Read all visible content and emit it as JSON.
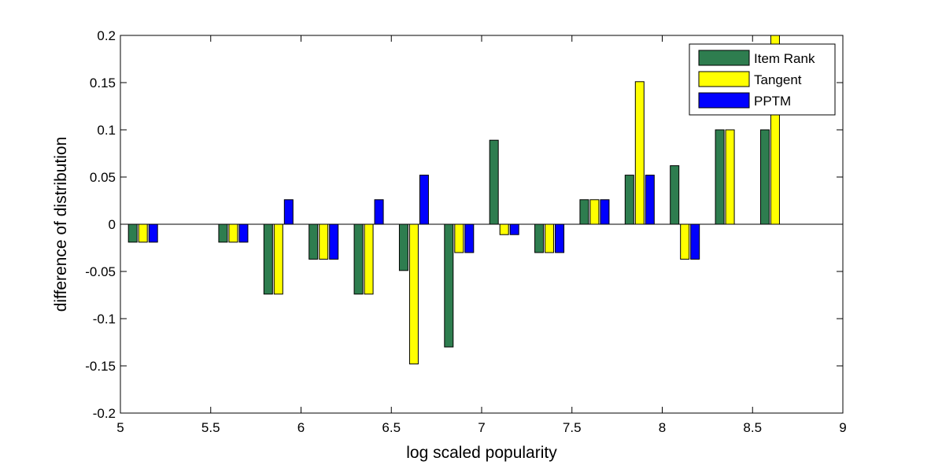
{
  "chart_data": {
    "type": "bar",
    "xlabel": "log scaled popularity",
    "ylabel": "difference of distribution",
    "xlim": [
      5,
      9
    ],
    "ylim": [
      -0.2,
      0.2
    ],
    "x_ticks": [
      "5",
      "5.5",
      "6",
      "6.5",
      "7",
      "7.5",
      "8",
      "8.5",
      "9"
    ],
    "y_ticks": [
      "-0.2",
      "-0.15",
      "-0.1",
      "-0.05",
      "0",
      "0.05",
      "0.1",
      "0.15",
      "0.2"
    ],
    "legend_position": "top-right",
    "x": [
      5.125,
      5.625,
      5.875,
      6.125,
      6.375,
      6.625,
      6.875,
      7.125,
      7.375,
      7.625,
      7.875,
      8.125,
      8.375,
      8.625
    ],
    "series": [
      {
        "name": "Item Rank",
        "color": "#2e7d4f",
        "values": [
          -0.019,
          -0.019,
          -0.074,
          -0.037,
          -0.074,
          -0.049,
          -0.13,
          0.089,
          -0.03,
          0.026,
          0.052,
          0.062,
          0.1,
          0.1
        ]
      },
      {
        "name": "Tangent",
        "color": "#ffff00",
        "values": [
          -0.019,
          -0.019,
          -0.074,
          -0.037,
          -0.074,
          -0.148,
          -0.03,
          -0.011,
          -0.03,
          0.026,
          0.151,
          -0.037,
          0.1,
          0.2
        ]
      },
      {
        "name": "PPTM",
        "color": "#0000ff",
        "values": [
          -0.019,
          -0.019,
          0.026,
          -0.037,
          0.026,
          0.052,
          -0.03,
          -0.011,
          -0.03,
          0.026,
          0.052,
          -0.037,
          null,
          null
        ]
      }
    ]
  }
}
